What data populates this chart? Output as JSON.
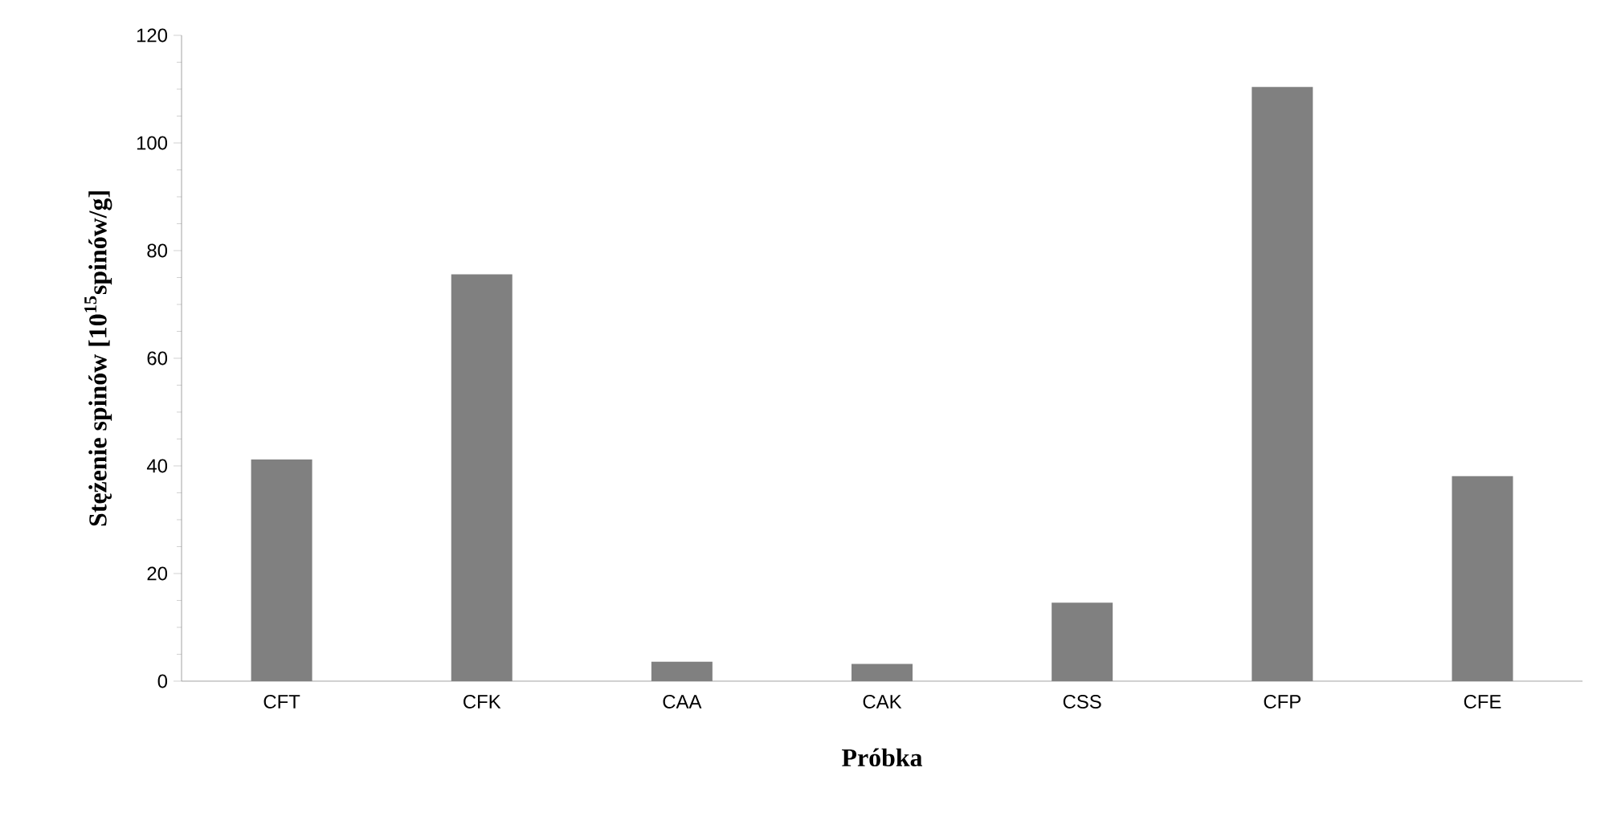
{
  "chart_data": {
    "type": "bar",
    "xlabel": "Próbka",
    "ylabel": "Stężenie spinów [10$^{15}$spinów/g]",
    "categories": [
      "CFT",
      "CFK",
      "CAA",
      "CAK",
      "CSS",
      "CFP",
      "CFE"
    ],
    "values": [
      41.2,
      75.6,
      3.6,
      3.2,
      14.6,
      110.4,
      38.1
    ],
    "color": "#808080",
    "ylim": [
      0,
      120
    ],
    "yticks": [
      0,
      20,
      40,
      60,
      80,
      100,
      120
    ],
    "grid": false
  }
}
